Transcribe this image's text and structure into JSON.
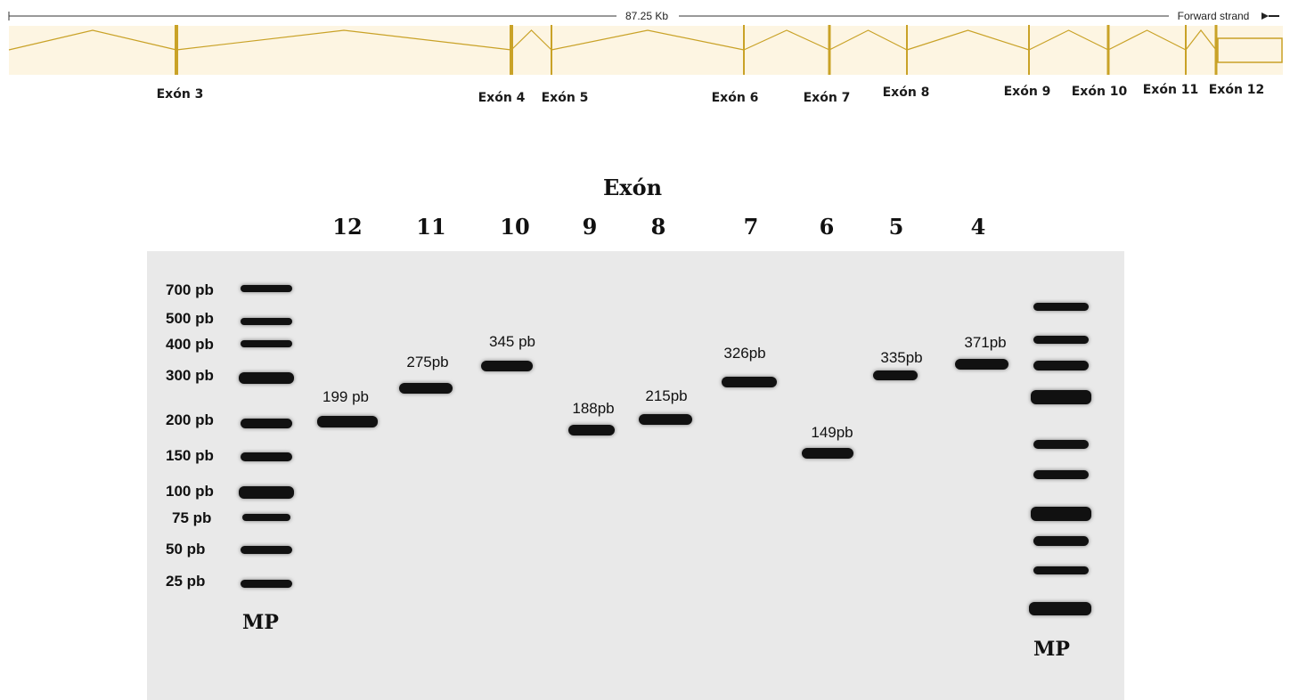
{
  "gene_track": {
    "length_label": "87.25 Kb",
    "strand_label": "Forward strand",
    "exons": [
      {
        "label": "Exón 3"
      },
      {
        "label": "Exón 4"
      },
      {
        "label": "Exón 5"
      },
      {
        "label": "Exón 6"
      },
      {
        "label": "Exón 7"
      },
      {
        "label": "Exón 8"
      },
      {
        "label": "Exón 9"
      },
      {
        "label": "Exón 10"
      },
      {
        "label": "Exón 11"
      },
      {
        "label": "Exón 12"
      }
    ],
    "colors": {
      "exon": "#c9a227",
      "track_bg": "#fdf5e2",
      "axis": "#333333"
    }
  },
  "gel": {
    "title": "Exón",
    "lane_numbers": [
      "12",
      "11",
      "10",
      "9",
      "8",
      "7",
      "6",
      "5",
      "4"
    ],
    "ladder_labels": [
      "700 pb",
      "500 pb",
      "400 pb",
      "300 pb",
      "200 pb",
      "150 pb",
      "100 pb",
      "75 pb",
      "50 pb",
      "25 pb"
    ],
    "band_labels": [
      "199 pb",
      "275pb",
      "345 pb",
      "188pb",
      "215pb",
      "326pb",
      "149pb",
      "335pb",
      "371pb"
    ],
    "marker_label_left": "MP",
    "marker_label_right": "MP",
    "colors": {
      "gel_bg": "#e9e9e9",
      "band": "#111111"
    }
  }
}
